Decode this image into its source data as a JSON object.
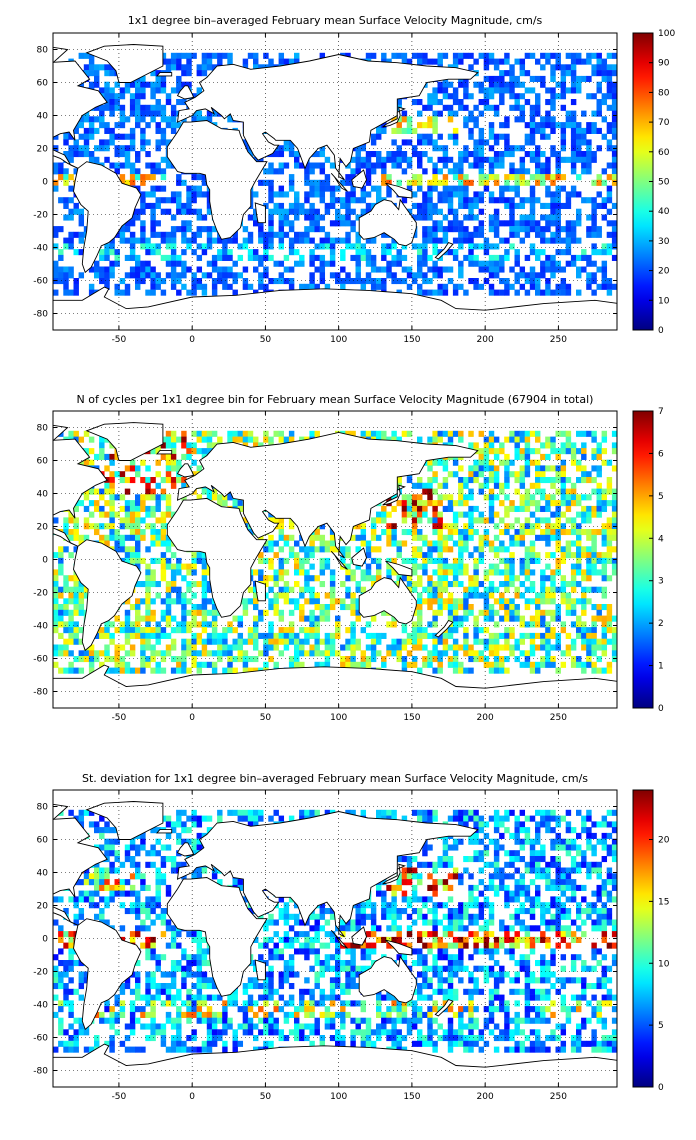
{
  "chart_data": [
    {
      "type": "heatmap",
      "title": "1x1 degree bin–averaged February mean Surface Velocity Magnitude, cm/s",
      "xlim": [
        -95,
        290
      ],
      "ylim": [
        -90,
        90
      ],
      "xticks": [
        "-50",
        "0",
        "50",
        "100",
        "150",
        "200",
        "250"
      ],
      "yticks": [
        "80",
        "60",
        "40",
        "20",
        "0",
        "-20",
        "-40",
        "-60",
        "-80"
      ],
      "grid": true,
      "colorbar": {
        "min": 0,
        "max": 100,
        "ticks": [
          "0",
          "10",
          "20",
          "30",
          "40",
          "50",
          "60",
          "70",
          "80",
          "90",
          "100"
        ],
        "colormap": "jet"
      }
    },
    {
      "type": "heatmap",
      "title": "N of cycles per 1x1 degree bin for February mean Surface Velocity Magnitude (67904 in total)",
      "xlim": [
        -95,
        290
      ],
      "ylim": [
        -90,
        90
      ],
      "xticks": [
        "-50",
        "0",
        "50",
        "100",
        "150",
        "200",
        "250"
      ],
      "yticks": [
        "80",
        "60",
        "40",
        "20",
        "0",
        "-20",
        "-40",
        "-60",
        "-80"
      ],
      "grid": true,
      "colorbar": {
        "min": 0,
        "max": 7,
        "ticks": [
          "0",
          "1",
          "2",
          "3",
          "4",
          "5",
          "6",
          "7"
        ],
        "colormap": "jet"
      }
    },
    {
      "type": "heatmap",
      "title": "St. deviation for 1x1 degree bin–averaged February mean Surface Velocity Magnitude, cm/s",
      "xlim": [
        -95,
        290
      ],
      "ylim": [
        -90,
        90
      ],
      "xticks": [
        "-50",
        "0",
        "50",
        "100",
        "150",
        "200",
        "250"
      ],
      "yticks": [
        "80",
        "60",
        "40",
        "20",
        "0",
        "-20",
        "-40",
        "-60",
        "-80"
      ],
      "grid": true,
      "colorbar": {
        "min": 0,
        "max": 24,
        "ticks": [
          "0",
          "5",
          "10",
          "15",
          "20"
        ],
        "colormap": "jet"
      }
    }
  ]
}
